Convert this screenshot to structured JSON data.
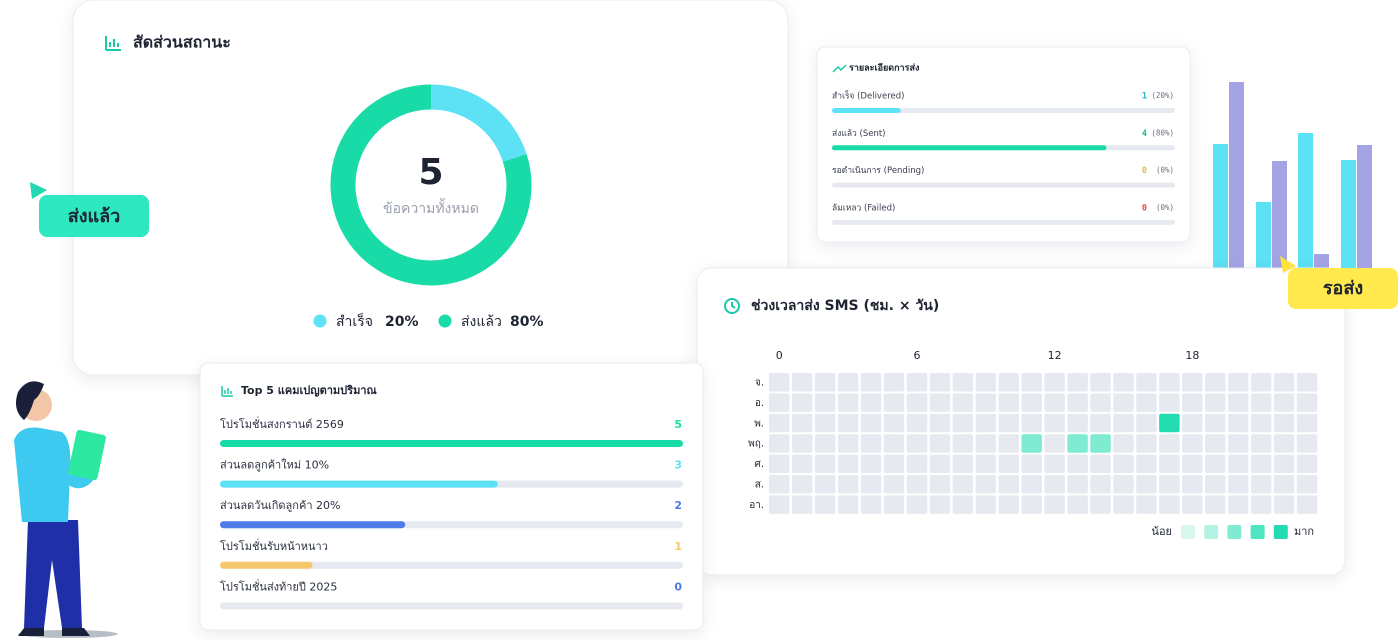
{
  "status_card": {
    "title": "สัดส่วนสถานะ",
    "total": 5,
    "total_label": "ข้อความทั้งหมด",
    "categories": [
      "สำเร็จ",
      "ส่งแล้ว"
    ],
    "values": [
      20,
      80
    ],
    "value_labels": [
      "20%",
      "80%"
    ],
    "colors": [
      "#5ce1f5",
      "#19dba8"
    ]
  },
  "details_card": {
    "title": "รายละเอียดการส่ง",
    "rows": [
      {
        "label": "สำเร็จ (Delivered)",
        "count": 1,
        "percent": 20,
        "percent_label": "(20%)",
        "color": "#5ce1f5",
        "text_color": "#21b8d6"
      },
      {
        "label": "ส่งแล้ว (Sent)",
        "count": 4,
        "percent": 80,
        "percent_label": "(80%)",
        "color": "#19dba8",
        "text_color": "#14b98d"
      },
      {
        "label": "รอดำเนินการ (Pending)",
        "count": 0,
        "percent": 0,
        "percent_label": "(0%)",
        "color": "#f5c96a",
        "text_color": "#e8b84a"
      },
      {
        "label": "ล้มเหลว (Failed)",
        "count": 0,
        "percent": 0,
        "percent_label": "(0%)",
        "color": "#ef5a5a",
        "text_color": "#e04848"
      }
    ]
  },
  "campaigns_card": {
    "title": "Top 5 แคมเปญตามปริมาณ",
    "items": [
      {
        "name": "โปรโมชั่นสงกรานต์ 2569",
        "value": 5,
        "color": "#19dba8"
      },
      {
        "name": "ส่วนลดลูกค้าใหม่ 10%",
        "value": 3,
        "color": "#5ce1f5"
      },
      {
        "name": "ส่วนลดวันเกิดลูกค้า 20%",
        "value": 2,
        "color": "#4f7be8"
      },
      {
        "name": "โปรโมชั่นรับหน้าหนาว",
        "value": 1,
        "color": "#f5c96a"
      },
      {
        "name": "โปรโมชั่นส่งท้ายปี 2025",
        "value": 0,
        "color": "#4f7be8"
      }
    ]
  },
  "heatmap_card": {
    "title": "ช่วงเวลาส่ง SMS (ชม. × วัน)",
    "xticks": [
      0,
      6,
      12,
      18
    ],
    "days": [
      "จ.",
      "อ.",
      "พ.",
      "พฤ.",
      "ศ.",
      "ส.",
      "อา."
    ],
    "values": [
      [
        0,
        0,
        0,
        0,
        0,
        0,
        0,
        0,
        0,
        0,
        0,
        0,
        0,
        0,
        0,
        0,
        0,
        0,
        0,
        0,
        0,
        0,
        0,
        0
      ],
      [
        0,
        0,
        0,
        0,
        0,
        0,
        0,
        0,
        0,
        0,
        0,
        0,
        0,
        0,
        0,
        0,
        0,
        0,
        0,
        0,
        0,
        0,
        0,
        0
      ],
      [
        0,
        0,
        0,
        0,
        0,
        0,
        0,
        0,
        0,
        0,
        0,
        0,
        0,
        0,
        0,
        0,
        0,
        2,
        0,
        0,
        0,
        0,
        0,
        0
      ],
      [
        0,
        0,
        0,
        0,
        0,
        0,
        0,
        0,
        0,
        0,
        0,
        1,
        0,
        1,
        1,
        0,
        0,
        0,
        0,
        0,
        0,
        0,
        0,
        0
      ],
      [
        0,
        0,
        0,
        0,
        0,
        0,
        0,
        0,
        0,
        0,
        0,
        0,
        0,
        0,
        0,
        0,
        0,
        0,
        0,
        0,
        0,
        0,
        0,
        0
      ],
      [
        0,
        0,
        0,
        0,
        0,
        0,
        0,
        0,
        0,
        0,
        0,
        0,
        0,
        0,
        0,
        0,
        0,
        0,
        0,
        0,
        0,
        0,
        0,
        0
      ],
      [
        0,
        0,
        0,
        0,
        0,
        0,
        0,
        0,
        0,
        0,
        0,
        0,
        0,
        0,
        0,
        0,
        0,
        0,
        0,
        0,
        0,
        0,
        0,
        0
      ]
    ],
    "empty_color": "#e6e9ef",
    "scale_colors": [
      "#d7f8ef",
      "#b3f3e3",
      "#7fecd2",
      "#4fe4c2",
      "#22dbb0"
    ],
    "legend_low": "น้อย",
    "legend_high": "มาก"
  },
  "badges": [
    "ส่งแล้ว",
    "รอส่ง"
  ],
  "deco_chart": {
    "series": [
      {
        "color": "#5ce1f5",
        "values": [
          124,
          66,
          135,
          108
        ]
      },
      {
        "color": "#a3a3e6",
        "values": [
          186,
          107,
          14,
          123
        ]
      }
    ]
  }
}
